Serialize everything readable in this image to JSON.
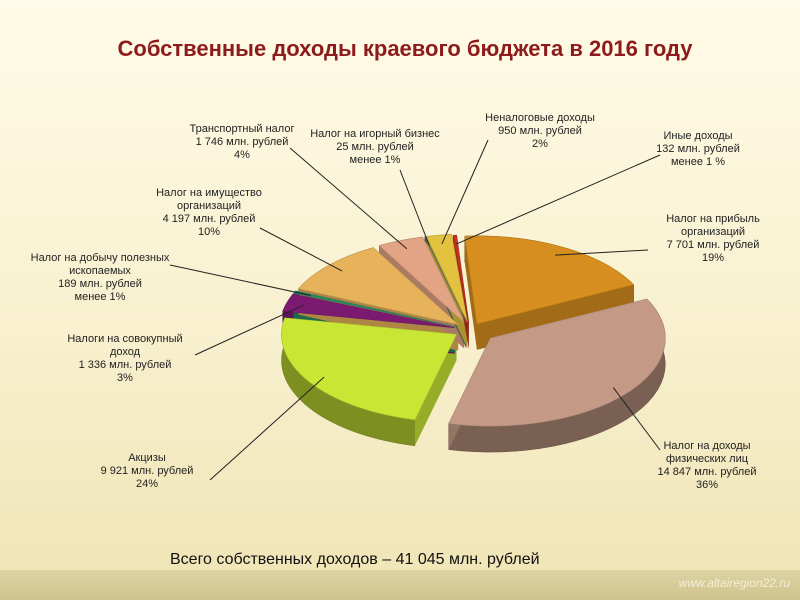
{
  "chart_data": {
    "type": "pie",
    "title": "Собственные доходы краевого бюджета в 2016 году",
    "categories": [
      "Налог на прибыль организаций",
      "Налог на доходы физических лиц",
      "Акцизы",
      "Налоги на совокупный доход",
      "Налог на добычу полезных ископаемых",
      "Налог на имущество организаций",
      "Транспортный налог",
      "Налог на игорный бизнес",
      "Неналоговые доходы",
      "Иные доходы"
    ],
    "values": [
      7701,
      14847,
      9921,
      1336,
      189,
      4197,
      1746,
      25,
      950,
      132
    ],
    "value_labels": [
      "7 701 млн. рублей",
      "14 847 млн. рублей",
      "9 921 млн. рублей",
      "1 336 млн. рублей",
      "189 млн. рублей",
      "4 197 млн. рублей",
      "1 746 млн. рублей",
      "25 млн. рублей",
      "950 млн. рублей",
      "132 млн. рублей"
    ],
    "share_labels": [
      "19%",
      "36%",
      "24%",
      "3%",
      "менее 1%",
      "10%",
      "4%",
      "менее 1%",
      "2%",
      "менее 1 %"
    ],
    "colors": [
      "#d68f1f",
      "#c49a86",
      "#c9e635",
      "#7c1a72",
      "#2b8a66",
      "#e6b35a",
      "#e2a484",
      "#5f7a6a",
      "#e2c23e",
      "#c2331f"
    ],
    "footer": "Всего собственных доходов – 41 045 млн. рублей",
    "watermark": "www.altairegion22.ru"
  }
}
